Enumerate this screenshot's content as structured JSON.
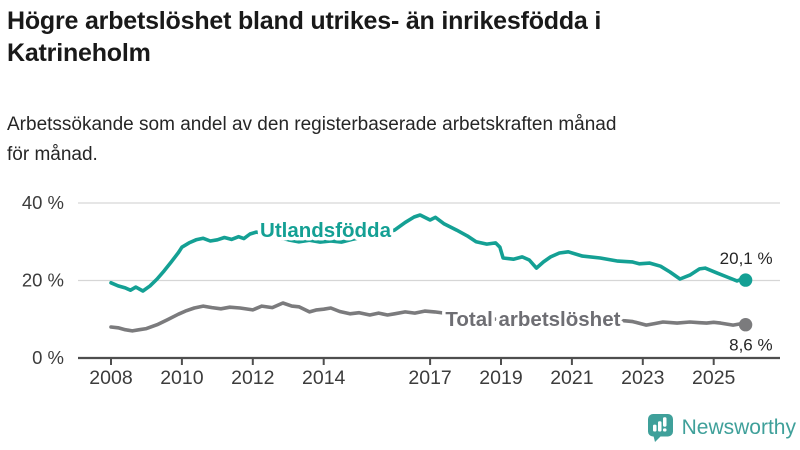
{
  "header": {
    "title": "Högre arbetslöshet bland utrikes- än inrikesfödda i Katrineholm",
    "title_lines": [
      "Högre arbetslöshet bland utrikes- än inrikesfödda i",
      "Katrineholm"
    ],
    "subtitle": "Arbetssökande som andel av den registerbaserade arbetskraften månad för månad.",
    "subtitle_lines": [
      "Arbetssökande som andel av den registerbaserade arbetskraften månad",
      "för månad."
    ]
  },
  "chart_data": {
    "type": "line",
    "title": "Högre arbetslöshet bland utrikes- än inrikesfödda i Katrineholm",
    "subtitle": "Arbetssökande som andel av den registerbaserade arbetskraften månad för månad.",
    "xlabel": "",
    "ylabel": "",
    "unit": "%",
    "x_range": [
      2008,
      2026.1
    ],
    "y_range": [
      0,
      43
    ],
    "grid": "horizontal",
    "legend_position": "inline-labels",
    "colors": {
      "accent_teal": "#14a094",
      "line_gray": "#7b7b7d",
      "grid": "#d6d6d6",
      "axis": "#4e4e4e",
      "tick_text": "#3c3c3c",
      "value_text": "#262626"
    },
    "x_ticks": [
      {
        "value": 2008,
        "label": "2008"
      },
      {
        "value": 2010,
        "label": "2010"
      },
      {
        "value": 2012,
        "label": "2012"
      },
      {
        "value": 2014,
        "label": "2014"
      },
      {
        "value": 2017,
        "label": "2017"
      },
      {
        "value": 2019,
        "label": "2019"
      },
      {
        "value": 2021,
        "label": "2021"
      },
      {
        "value": 2023,
        "label": "2023"
      },
      {
        "value": 2025,
        "label": "2025"
      }
    ],
    "y_ticks": [
      {
        "value": 0,
        "label": "0 %"
      },
      {
        "value": 20,
        "label": "20 %"
      },
      {
        "value": 40,
        "label": "40 %"
      }
    ],
    "series": [
      {
        "name": "Utlandsfödda",
        "color": "#14a094",
        "end_value": 20.1,
        "end_label": "20,1 %",
        "label_pos": {
          "year": 2014.05,
          "value": 31.2
        },
        "points": [
          [
            2008.0,
            19.4
          ],
          [
            2008.2,
            18.6
          ],
          [
            2008.4,
            18.1
          ],
          [
            2008.55,
            17.5
          ],
          [
            2008.7,
            18.3
          ],
          [
            2008.9,
            17.3
          ],
          [
            2009.1,
            18.6
          ],
          [
            2009.3,
            20.4
          ],
          [
            2009.5,
            22.5
          ],
          [
            2009.7,
            24.8
          ],
          [
            2009.9,
            27.2
          ],
          [
            2010.0,
            28.6
          ],
          [
            2010.2,
            29.7
          ],
          [
            2010.4,
            30.5
          ],
          [
            2010.6,
            30.9
          ],
          [
            2010.8,
            30.2
          ],
          [
            2011.0,
            30.5
          ],
          [
            2011.2,
            31.1
          ],
          [
            2011.4,
            30.6
          ],
          [
            2011.6,
            31.3
          ],
          [
            2011.75,
            30.8
          ],
          [
            2011.92,
            32.0
          ],
          [
            2012.1,
            32.5
          ],
          [
            2012.3,
            32.2
          ],
          [
            2012.5,
            31.6
          ],
          [
            2012.75,
            31.0
          ],
          [
            2013.0,
            30.5
          ],
          [
            2013.3,
            30.0
          ],
          [
            2013.6,
            30.4
          ],
          [
            2013.9,
            29.9
          ],
          [
            2014.2,
            30.2
          ],
          [
            2014.5,
            29.9
          ],
          [
            2014.8,
            30.6
          ],
          [
            2015.1,
            31.2
          ],
          [
            2015.4,
            31.8
          ],
          [
            2015.7,
            32.3
          ],
          [
            2016.0,
            33.0
          ],
          [
            2016.3,
            35.0
          ],
          [
            2016.55,
            36.4
          ],
          [
            2016.72,
            36.9
          ],
          [
            2017.0,
            35.6
          ],
          [
            2017.15,
            36.3
          ],
          [
            2017.4,
            34.6
          ],
          [
            2017.75,
            33.0
          ],
          [
            2018.05,
            31.5
          ],
          [
            2018.3,
            30.0
          ],
          [
            2018.6,
            29.4
          ],
          [
            2018.85,
            29.7
          ],
          [
            2018.97,
            28.6
          ],
          [
            2019.06,
            25.8
          ],
          [
            2019.35,
            25.5
          ],
          [
            2019.6,
            26.1
          ],
          [
            2019.8,
            25.3
          ],
          [
            2020.0,
            23.2
          ],
          [
            2020.2,
            24.8
          ],
          [
            2020.4,
            26.1
          ],
          [
            2020.65,
            27.1
          ],
          [
            2020.9,
            27.4
          ],
          [
            2021.3,
            26.3
          ],
          [
            2021.8,
            25.8
          ],
          [
            2022.3,
            25.0
          ],
          [
            2022.7,
            24.8
          ],
          [
            2022.9,
            24.3
          ],
          [
            2023.2,
            24.5
          ],
          [
            2023.5,
            23.7
          ],
          [
            2023.77,
            22.2
          ],
          [
            2024.05,
            20.4
          ],
          [
            2024.33,
            21.4
          ],
          [
            2024.6,
            23.0
          ],
          [
            2024.76,
            23.2
          ],
          [
            2025.1,
            21.9
          ],
          [
            2025.38,
            20.9
          ],
          [
            2025.66,
            19.9
          ],
          [
            2025.8,
            20.4
          ],
          [
            2025.9,
            20.1
          ]
        ]
      },
      {
        "name": "Total arbetslöshet",
        "color": "#7b7b7d",
        "label_color": "#6e6e73",
        "end_value": 8.6,
        "end_label": "8,6 %",
        "label_pos": {
          "year": 2019.9,
          "value": 8.26
        },
        "points": [
          [
            2008.0,
            8.0
          ],
          [
            2008.2,
            7.8
          ],
          [
            2008.4,
            7.3
          ],
          [
            2008.6,
            7.0
          ],
          [
            2008.8,
            7.3
          ],
          [
            2009.0,
            7.6
          ],
          [
            2009.3,
            8.6
          ],
          [
            2009.6,
            9.9
          ],
          [
            2009.9,
            11.3
          ],
          [
            2010.1,
            12.1
          ],
          [
            2010.35,
            12.9
          ],
          [
            2010.6,
            13.4
          ],
          [
            2010.85,
            13.0
          ],
          [
            2011.1,
            12.7
          ],
          [
            2011.35,
            13.1
          ],
          [
            2011.64,
            12.9
          ],
          [
            2012.0,
            12.4
          ],
          [
            2012.25,
            13.4
          ],
          [
            2012.55,
            13.0
          ],
          [
            2012.85,
            14.2
          ],
          [
            2013.1,
            13.4
          ],
          [
            2013.3,
            13.2
          ],
          [
            2013.6,
            11.9
          ],
          [
            2013.8,
            12.4
          ],
          [
            2014.0,
            12.6
          ],
          [
            2014.2,
            12.9
          ],
          [
            2014.45,
            12.0
          ],
          [
            2014.74,
            11.4
          ],
          [
            2015.0,
            11.7
          ],
          [
            2015.3,
            11.1
          ],
          [
            2015.55,
            11.6
          ],
          [
            2015.8,
            11.1
          ],
          [
            2016.0,
            11.4
          ],
          [
            2016.3,
            11.9
          ],
          [
            2016.57,
            11.6
          ],
          [
            2016.85,
            12.1
          ],
          [
            2017.13,
            11.9
          ],
          [
            2017.4,
            11.6
          ],
          [
            2017.7,
            11.3
          ],
          [
            2018.0,
            10.9
          ],
          [
            2018.3,
            10.5
          ],
          [
            2018.6,
            10.2
          ],
          [
            2018.9,
            10.0
          ],
          [
            2019.2,
            9.8
          ],
          [
            2019.5,
            9.6
          ],
          [
            2019.8,
            9.7
          ],
          [
            2020.1,
            9.9
          ],
          [
            2020.4,
            10.5
          ],
          [
            2020.7,
            11.0
          ],
          [
            2021.0,
            10.7
          ],
          [
            2021.3,
            10.4
          ],
          [
            2021.6,
            10.1
          ],
          [
            2021.9,
            9.9
          ],
          [
            2022.2,
            9.7
          ],
          [
            2022.5,
            9.6
          ],
          [
            2022.72,
            9.4
          ],
          [
            2023.1,
            8.5
          ],
          [
            2023.35,
            8.9
          ],
          [
            2023.57,
            9.3
          ],
          [
            2023.97,
            9.0
          ],
          [
            2024.33,
            9.3
          ],
          [
            2024.6,
            9.1
          ],
          [
            2024.8,
            9.0
          ],
          [
            2025.0,
            9.2
          ],
          [
            2025.2,
            9.0
          ],
          [
            2025.55,
            8.5
          ],
          [
            2025.75,
            8.8
          ],
          [
            2025.9,
            8.6
          ]
        ]
      }
    ]
  },
  "branding": {
    "logo_text": "Newsworthy",
    "logo_color": "#3fa09a",
    "logo_icon": "bar-chart-speech-bubble-icon"
  }
}
